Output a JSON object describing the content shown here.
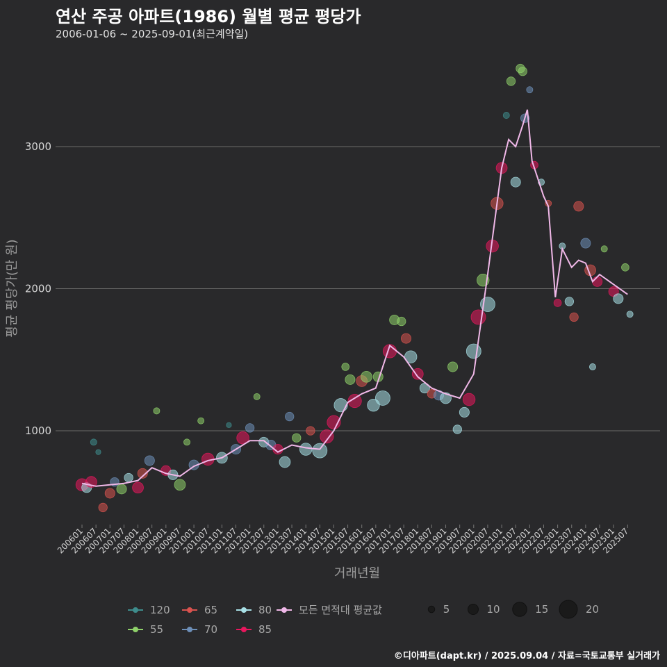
{
  "header": {
    "title": "연산 주공 아파트(1986) 월별 평균 평당가",
    "subtitle": "2006-01-06 ~ 2025-09-01(최근계약일)"
  },
  "footer": {
    "credit": "©디아파트(dapt.kr) / 2025.09.04 / 자료=국토교통부 실거래가"
  },
  "chart_data": {
    "type": "scatter",
    "xlabel": "거래년월",
    "ylabel": "평균 평당가(만 원)",
    "yticks": [
      1000,
      2000,
      3000
    ],
    "ylim": [
      300,
      3650
    ],
    "grid": true,
    "legend_placement": "bottom",
    "xticks": [
      "200601",
      "200607",
      "200701",
      "200707",
      "200801",
      "200807",
      "200901",
      "200907",
      "201001",
      "201007",
      "201101",
      "201107",
      "201201",
      "201207",
      "201301",
      "201307",
      "201401",
      "201407",
      "201501",
      "201507",
      "201601",
      "201607",
      "201701",
      "201707",
      "201801",
      "201807",
      "201901",
      "201907",
      "202001",
      "202007",
      "202101",
      "202107",
      "202201",
      "202207",
      "202301",
      "202307",
      "202401",
      "202407",
      "202501",
      "202507"
    ],
    "series": [
      {
        "name": "120",
        "color": "#3e8c8c"
      },
      {
        "name": "55",
        "color": "#8fd16a"
      },
      {
        "name": "65",
        "color": "#d9534f"
      },
      {
        "name": "70",
        "color": "#6d8fb8"
      },
      {
        "name": "80",
        "color": "#a8e0e6"
      },
      {
        "name": "85",
        "color": "#e8175d"
      },
      {
        "name": "모든 면적대 평균값",
        "color": "#f0b8e8"
      }
    ],
    "size_legend": [
      5,
      10,
      15,
      20
    ],
    "average_line": [
      [
        "2006-01",
        630
      ],
      [
        "2006-07",
        610
      ],
      [
        "2007-01",
        620
      ],
      [
        "2007-07",
        630
      ],
      [
        "2008-01",
        650
      ],
      [
        "2008-07",
        740
      ],
      [
        "2009-01",
        700
      ],
      [
        "2009-07",
        680
      ],
      [
        "2010-01",
        750
      ],
      [
        "2010-07",
        790
      ],
      [
        "2011-01",
        810
      ],
      [
        "2011-07",
        870
      ],
      [
        "2012-01",
        930
      ],
      [
        "2012-07",
        930
      ],
      [
        "2013-01",
        850
      ],
      [
        "2013-07",
        900
      ],
      [
        "2014-01",
        880
      ],
      [
        "2014-07",
        870
      ],
      [
        "2015-01",
        1000
      ],
      [
        "2015-07",
        1200
      ],
      [
        "2016-01",
        1260
      ],
      [
        "2016-07",
        1300
      ],
      [
        "2017-01",
        1600
      ],
      [
        "2017-07",
        1520
      ],
      [
        "2018-01",
        1380
      ],
      [
        "2018-07",
        1300
      ],
      [
        "2019-01",
        1260
      ],
      [
        "2019-07",
        1230
      ],
      [
        "2020-01",
        1400
      ],
      [
        "2020-07",
        2100
      ],
      [
        "2021-01",
        2850
      ],
      [
        "2021-04",
        3050
      ],
      [
        "2021-07",
        3000
      ],
      [
        "2021-10",
        3150
      ],
      [
        "2021-12",
        3260
      ],
      [
        "2022-02",
        2900
      ],
      [
        "2022-07",
        2650
      ],
      [
        "2022-09",
        2580
      ],
      [
        "2022-12",
        1940
      ],
      [
        "2023-03",
        2280
      ],
      [
        "2023-07",
        2150
      ],
      [
        "2023-10",
        2200
      ],
      [
        "2024-01",
        2180
      ],
      [
        "2024-04",
        2050
      ],
      [
        "2024-07",
        2100
      ],
      [
        "2025-01",
        2030
      ],
      [
        "2025-07",
        1960
      ]
    ],
    "points": [
      [
        "2006-01",
        620,
        "85",
        8
      ],
      [
        "2006-03",
        600,
        "80",
        6
      ],
      [
        "2006-05",
        640,
        "85",
        7
      ],
      [
        "2006-06",
        920,
        "120",
        3
      ],
      [
        "2006-08",
        850,
        "120",
        2
      ],
      [
        "2006-10",
        460,
        "65",
        5
      ],
      [
        "2007-01",
        560,
        "65",
        6
      ],
      [
        "2007-03",
        640,
        "70",
        5
      ],
      [
        "2007-06",
        590,
        "55",
        6
      ],
      [
        "2007-09",
        670,
        "80",
        5
      ],
      [
        "2008-01",
        600,
        "85",
        7
      ],
      [
        "2008-03",
        700,
        "65",
        6
      ],
      [
        "2008-06",
        790,
        "70",
        6
      ],
      [
        "2008-09",
        1140,
        "55",
        3
      ],
      [
        "2009-01",
        720,
        "85",
        6
      ],
      [
        "2009-04",
        690,
        "80",
        6
      ],
      [
        "2009-07",
        620,
        "55",
        7
      ],
      [
        "2009-10",
        920,
        "55",
        3
      ],
      [
        "2010-01",
        760,
        "70",
        6
      ],
      [
        "2010-04",
        1070,
        "55",
        3
      ],
      [
        "2010-07",
        800,
        "85",
        8
      ],
      [
        "2011-01",
        810,
        "80",
        7
      ],
      [
        "2011-04",
        1040,
        "120",
        2
      ],
      [
        "2011-07",
        870,
        "70",
        6
      ],
      [
        "2011-10",
        950,
        "85",
        8
      ],
      [
        "2012-01",
        1020,
        "70",
        5
      ],
      [
        "2012-04",
        1240,
        "55",
        3
      ],
      [
        "2012-07",
        920,
        "80",
        6
      ],
      [
        "2012-10",
        900,
        "70",
        6
      ],
      [
        "2013-01",
        870,
        "85",
        6
      ],
      [
        "2013-04",
        780,
        "80",
        7
      ],
      [
        "2013-06",
        1100,
        "70",
        5
      ],
      [
        "2013-09",
        950,
        "55",
        5
      ],
      [
        "2014-01",
        870,
        "80",
        8
      ],
      [
        "2014-03",
        1000,
        "65",
        5
      ],
      [
        "2014-07",
        860,
        "80",
        10
      ],
      [
        "2014-10",
        960,
        "85",
        9
      ],
      [
        "2015-01",
        1060,
        "85",
        9
      ],
      [
        "2015-04",
        1180,
        "80",
        9
      ],
      [
        "2015-06",
        1450,
        "55",
        4
      ],
      [
        "2015-08",
        1360,
        "55",
        6
      ],
      [
        "2015-10",
        1210,
        "85",
        9
      ],
      [
        "2016-01",
        1350,
        "65",
        7
      ],
      [
        "2016-03",
        1380,
        "55",
        7
      ],
      [
        "2016-06",
        1180,
        "80",
        8
      ],
      [
        "2016-08",
        1380,
        "55",
        6
      ],
      [
        "2016-10",
        1230,
        "80",
        10
      ],
      [
        "2017-01",
        1560,
        "85",
        9
      ],
      [
        "2017-03",
        1780,
        "55",
        6
      ],
      [
        "2017-06",
        1770,
        "55",
        5
      ],
      [
        "2017-08",
        1650,
        "65",
        6
      ],
      [
        "2017-10",
        1520,
        "80",
        8
      ],
      [
        "2018-01",
        1400,
        "85",
        7
      ],
      [
        "2018-04",
        1300,
        "80",
        6
      ],
      [
        "2018-07",
        1260,
        "65",
        5
      ],
      [
        "2018-10",
        1250,
        "70",
        6
      ],
      [
        "2019-01",
        1230,
        "80",
        7
      ],
      [
        "2019-04",
        1450,
        "55",
        6
      ],
      [
        "2019-06",
        1010,
        "80",
        5
      ],
      [
        "2019-09",
        1130,
        "80",
        6
      ],
      [
        "2019-11",
        1220,
        "85",
        8
      ],
      [
        "2020-01",
        1560,
        "80",
        10
      ],
      [
        "2020-03",
        1800,
        "85",
        10
      ],
      [
        "2020-05",
        2060,
        "55",
        8
      ],
      [
        "2020-07",
        1890,
        "80",
        10
      ],
      [
        "2020-09",
        2300,
        "85",
        8
      ],
      [
        "2020-11",
        2600,
        "65",
        8
      ],
      [
        "2021-01",
        2850,
        "85",
        7
      ],
      [
        "2021-03",
        3220,
        "120",
        3
      ],
      [
        "2021-05",
        3460,
        "55",
        5
      ],
      [
        "2021-07",
        2750,
        "80",
        6
      ],
      [
        "2021-09",
        3550,
        "55",
        5
      ],
      [
        "2021-10",
        3530,
        "55",
        5
      ],
      [
        "2021-11",
        3200,
        "70",
        5
      ],
      [
        "2022-01",
        3400,
        "70",
        3
      ],
      [
        "2022-03",
        2870,
        "85",
        4
      ],
      [
        "2022-06",
        2750,
        "80",
        3
      ],
      [
        "2022-09",
        2600,
        "65",
        3
      ],
      [
        "2023-01",
        1900,
        "85",
        4
      ],
      [
        "2023-03",
        2300,
        "80",
        3
      ],
      [
        "2023-06",
        1910,
        "80",
        5
      ],
      [
        "2023-08",
        1800,
        "65",
        5
      ],
      [
        "2023-10",
        2580,
        "65",
        6
      ],
      [
        "2024-01",
        2320,
        "70",
        6
      ],
      [
        "2024-03",
        2130,
        "65",
        7
      ],
      [
        "2024-04",
        1450,
        "80",
        3
      ],
      [
        "2024-06",
        2050,
        "85",
        6
      ],
      [
        "2024-09",
        2280,
        "55",
        3
      ],
      [
        "2025-01",
        1980,
        "85",
        6
      ],
      [
        "2025-03",
        1930,
        "80",
        6
      ],
      [
        "2025-06",
        2150,
        "55",
        4
      ],
      [
        "2025-08",
        1820,
        "80",
        3
      ]
    ]
  }
}
